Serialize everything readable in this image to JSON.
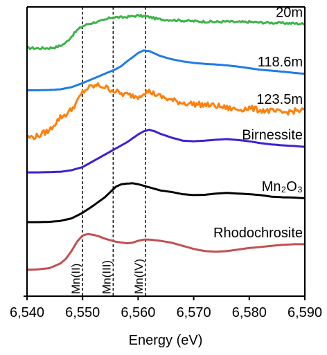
{
  "chart_data": {
    "type": "line",
    "title": "",
    "xlabel": "Energy (eV)",
    "ylabel": "",
    "xlim": [
      6540,
      6590
    ],
    "xticks": [
      6540,
      6550,
      6560,
      6570,
      6580,
      6590
    ],
    "xtick_labels": [
      "6,540",
      "6,550",
      "6,560",
      "6,570",
      "6,580",
      "6,590"
    ],
    "yticks_labels": [],
    "ylim": [
      0,
      9.3
    ],
    "grid": false,
    "legend": "none",
    "reference_lines": [
      {
        "x": 6550.0,
        "label": "Mn(II)"
      },
      {
        "x": 6555.5,
        "label": "Mn(III)"
      },
      {
        "x": 6561.3,
        "label": "Mn(IV)"
      }
    ],
    "series": [
      {
        "name": "20m",
        "color": "#3cb44b",
        "noise": 0.035,
        "x": [
          6540,
          6542,
          6544,
          6545,
          6546,
          6547,
          6548,
          6549,
          6550,
          6551,
          6552,
          6553,
          6554,
          6555,
          6556,
          6557,
          6558,
          6559,
          6560,
          6561,
          6562,
          6563,
          6564,
          6566,
          6568,
          6570,
          6572,
          6574,
          6576,
          6578,
          6580,
          6582,
          6584,
          6586,
          6588,
          6590
        ],
        "y": [
          7.98,
          7.97,
          7.98,
          8.0,
          8.05,
          8.15,
          8.35,
          8.55,
          8.68,
          8.75,
          8.8,
          8.83,
          8.88,
          8.95,
          8.97,
          8.96,
          8.98,
          9.0,
          9.02,
          9.0,
          8.98,
          8.93,
          8.9,
          8.88,
          8.86,
          8.84,
          8.83,
          8.82,
          8.83,
          8.81,
          8.82,
          8.8,
          8.79,
          8.78,
          8.77,
          8.75
        ]
      },
      {
        "name": "118.6m",
        "color": "#1e7be6",
        "noise": 0.0,
        "x": [
          6540,
          6542,
          6544,
          6546,
          6548,
          6550,
          6552,
          6554,
          6556,
          6557,
          6558,
          6559,
          6560,
          6561,
          6562,
          6563,
          6564,
          6566,
          6568,
          6570,
          6572,
          6574,
          6576,
          6578,
          6580,
          6582,
          6584,
          6586,
          6588,
          6590
        ],
        "y": [
          6.62,
          6.62,
          6.63,
          6.65,
          6.72,
          6.85,
          7.0,
          7.15,
          7.3,
          7.4,
          7.55,
          7.68,
          7.82,
          7.9,
          7.88,
          7.8,
          7.72,
          7.62,
          7.55,
          7.5,
          7.47,
          7.45,
          7.42,
          7.38,
          7.33,
          7.28,
          7.25,
          7.22,
          7.18,
          7.15
        ]
      },
      {
        "name": "123.5m",
        "color": "#ff7f0e",
        "noise": 0.09,
        "x": [
          6540,
          6541,
          6542,
          6543,
          6544,
          6545,
          6546,
          6547,
          6548,
          6549,
          6550,
          6551,
          6552,
          6553,
          6554,
          6555,
          6556,
          6557,
          6558,
          6559,
          6560,
          6561,
          6562,
          6563,
          6564,
          6566,
          6568,
          6570,
          6572,
          6574,
          6576,
          6578,
          6580,
          6582,
          6584,
          6586,
          6588,
          6590
        ],
        "y": [
          5.1,
          5.12,
          5.15,
          5.25,
          5.32,
          5.55,
          5.75,
          5.85,
          6.0,
          6.25,
          6.55,
          6.7,
          6.75,
          6.78,
          6.72,
          6.65,
          6.58,
          6.5,
          6.48,
          6.45,
          6.42,
          6.55,
          6.58,
          6.5,
          6.42,
          6.3,
          6.22,
          6.18,
          6.15,
          6.12,
          6.05,
          6.0,
          6.05,
          5.98,
          5.95,
          5.9,
          5.95,
          5.98
        ]
      },
      {
        "name": "Birnessite",
        "color": "#3d1fd6",
        "noise": 0.0,
        "x": [
          6540,
          6542,
          6544,
          6546,
          6548,
          6550,
          6552,
          6554,
          6556,
          6558,
          6560,
          6561,
          6562,
          6563,
          6564,
          6566,
          6568,
          6570,
          6572,
          6574,
          6576,
          6578,
          6580,
          6582,
          6584,
          6586,
          6588,
          6590
        ],
        "y": [
          3.98,
          3.98,
          3.99,
          4.0,
          4.05,
          4.15,
          4.35,
          4.55,
          4.75,
          4.95,
          5.2,
          5.3,
          5.35,
          5.3,
          5.22,
          5.1,
          5.0,
          4.98,
          5.0,
          5.03,
          5.05,
          5.02,
          4.98,
          4.92,
          4.88,
          4.85,
          4.83,
          4.8
        ]
      },
      {
        "name": "Mn₂O₃",
        "color": "#000000",
        "noise": 0.0,
        "x": [
          6540,
          6542,
          6544,
          6546,
          6548,
          6550,
          6552,
          6554,
          6555,
          6556,
          6557,
          6558,
          6559,
          6560,
          6561,
          6562,
          6563,
          6564,
          6566,
          6568,
          6570,
          6572,
          6574,
          6576,
          6578,
          6580,
          6582,
          6584,
          6586,
          6588,
          6590
        ],
        "y": [
          2.38,
          2.38,
          2.39,
          2.42,
          2.5,
          2.68,
          2.92,
          3.18,
          3.35,
          3.52,
          3.6,
          3.62,
          3.63,
          3.6,
          3.55,
          3.5,
          3.45,
          3.4,
          3.35,
          3.28,
          3.25,
          3.26,
          3.3,
          3.32,
          3.3,
          3.28,
          3.25,
          3.2,
          3.18,
          3.17,
          3.15
        ]
      },
      {
        "name": "Rhodochrosite",
        "color": "#c0504d",
        "noise": 0.0,
        "x": [
          6540,
          6542,
          6544,
          6546,
          6547,
          6548,
          6549,
          6550,
          6551,
          6552,
          6553,
          6554,
          6556,
          6558,
          6559,
          6560,
          6561,
          6562,
          6564,
          6566,
          6568,
          6570,
          6572,
          6574,
          6576,
          6578,
          6580,
          6582,
          6584,
          6586,
          6588,
          6590
        ],
        "y": [
          0.85,
          0.86,
          0.9,
          1.05,
          1.2,
          1.45,
          1.75,
          1.95,
          2.0,
          1.97,
          1.92,
          1.85,
          1.75,
          1.7,
          1.72,
          1.78,
          1.82,
          1.82,
          1.78,
          1.72,
          1.62,
          1.52,
          1.45,
          1.43,
          1.45,
          1.5,
          1.55,
          1.58,
          1.62,
          1.65,
          1.67,
          1.67
        ]
      }
    ]
  }
}
